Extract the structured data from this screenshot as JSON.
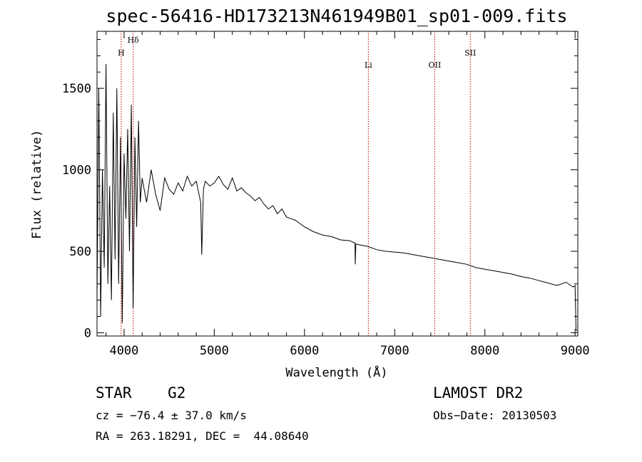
{
  "title": "spec-56416-HD173213N461949B01_sp01-009.fits",
  "chart_data": {
    "type": "line",
    "xlabel": "Wavelength (Å)",
    "ylabel": "Flux (relative)",
    "xlim": [
      3700,
      9030
    ],
    "ylim": [
      -20,
      1850
    ],
    "xticks": [
      4000,
      5000,
      6000,
      7000,
      8000,
      9000
    ],
    "yticks": [
      0,
      500,
      1000,
      1500
    ],
    "grid": false,
    "spectral_lines": [
      {
        "name": "H",
        "wavelength": 3968
      },
      {
        "name": "Hδ",
        "wavelength": 4101
      },
      {
        "name": "Li",
        "wavelength": 6708
      },
      {
        "name": "OII",
        "wavelength": 7444
      },
      {
        "name": "SII",
        "wavelength": 7838
      }
    ],
    "series": [
      {
        "x": [
          3700,
          3720,
          3740,
          3760,
          3780,
          3800,
          3820,
          3840,
          3860,
          3880,
          3900,
          3920,
          3940,
          3960,
          3980,
          4000,
          4020,
          4040,
          4060,
          4080,
          4100,
          4120,
          4140,
          4160,
          4180,
          4200,
          4250,
          4300,
          4350,
          4400,
          4450,
          4500,
          4550,
          4600,
          4650,
          4700,
          4750,
          4800,
          4850,
          4861,
          4880,
          4900,
          4950,
          5000,
          5050,
          5100,
          5150,
          5200,
          5250,
          5300,
          5350,
          5400,
          5450,
          5500,
          5550,
          5600,
          5650,
          5700,
          5750,
          5800,
          5850,
          5900,
          5950,
          6000,
          6100,
          6200,
          6300,
          6400,
          6500,
          6560,
          6563,
          6570,
          6600,
          6700,
          6800,
          6900,
          7000,
          7100,
          7200,
          7300,
          7400,
          7500,
          7600,
          7700,
          7800,
          7900,
          8000,
          8100,
          8200,
          8300,
          8400,
          8500,
          8600,
          8700,
          8800,
          8900,
          8950,
          8980,
          9000,
          9010,
          9020
        ],
        "y": [
          200,
          1500,
          100,
          1000,
          400,
          1650,
          300,
          900,
          200,
          1350,
          450,
          1500,
          300,
          1200,
          60,
          1100,
          700,
          1250,
          500,
          1400,
          150,
          1200,
          650,
          1300,
          800,
          950,
          800,
          1000,
          850,
          750,
          950,
          880,
          850,
          920,
          870,
          960,
          900,
          930,
          800,
          480,
          880,
          930,
          900,
          920,
          960,
          910,
          880,
          950,
          870,
          890,
          860,
          840,
          810,
          830,
          790,
          760,
          780,
          730,
          760,
          710,
          700,
          690,
          670,
          650,
          620,
          600,
          590,
          570,
          565,
          550,
          420,
          545,
          540,
          530,
          510,
          500,
          495,
          490,
          480,
          470,
          460,
          450,
          440,
          430,
          420,
          400,
          390,
          380,
          370,
          360,
          345,
          335,
          320,
          305,
          290,
          310,
          290,
          280,
          290,
          20,
          10
        ]
      }
    ]
  },
  "info": {
    "object": "STAR    G2",
    "survey": "LAMOST DR2",
    "cz": "cz = −76.4 ± 37.0 km/s",
    "obs_date": "Obs−Date: 20130503",
    "coords": "RA = 263.18291, DEC =  44.08640"
  }
}
